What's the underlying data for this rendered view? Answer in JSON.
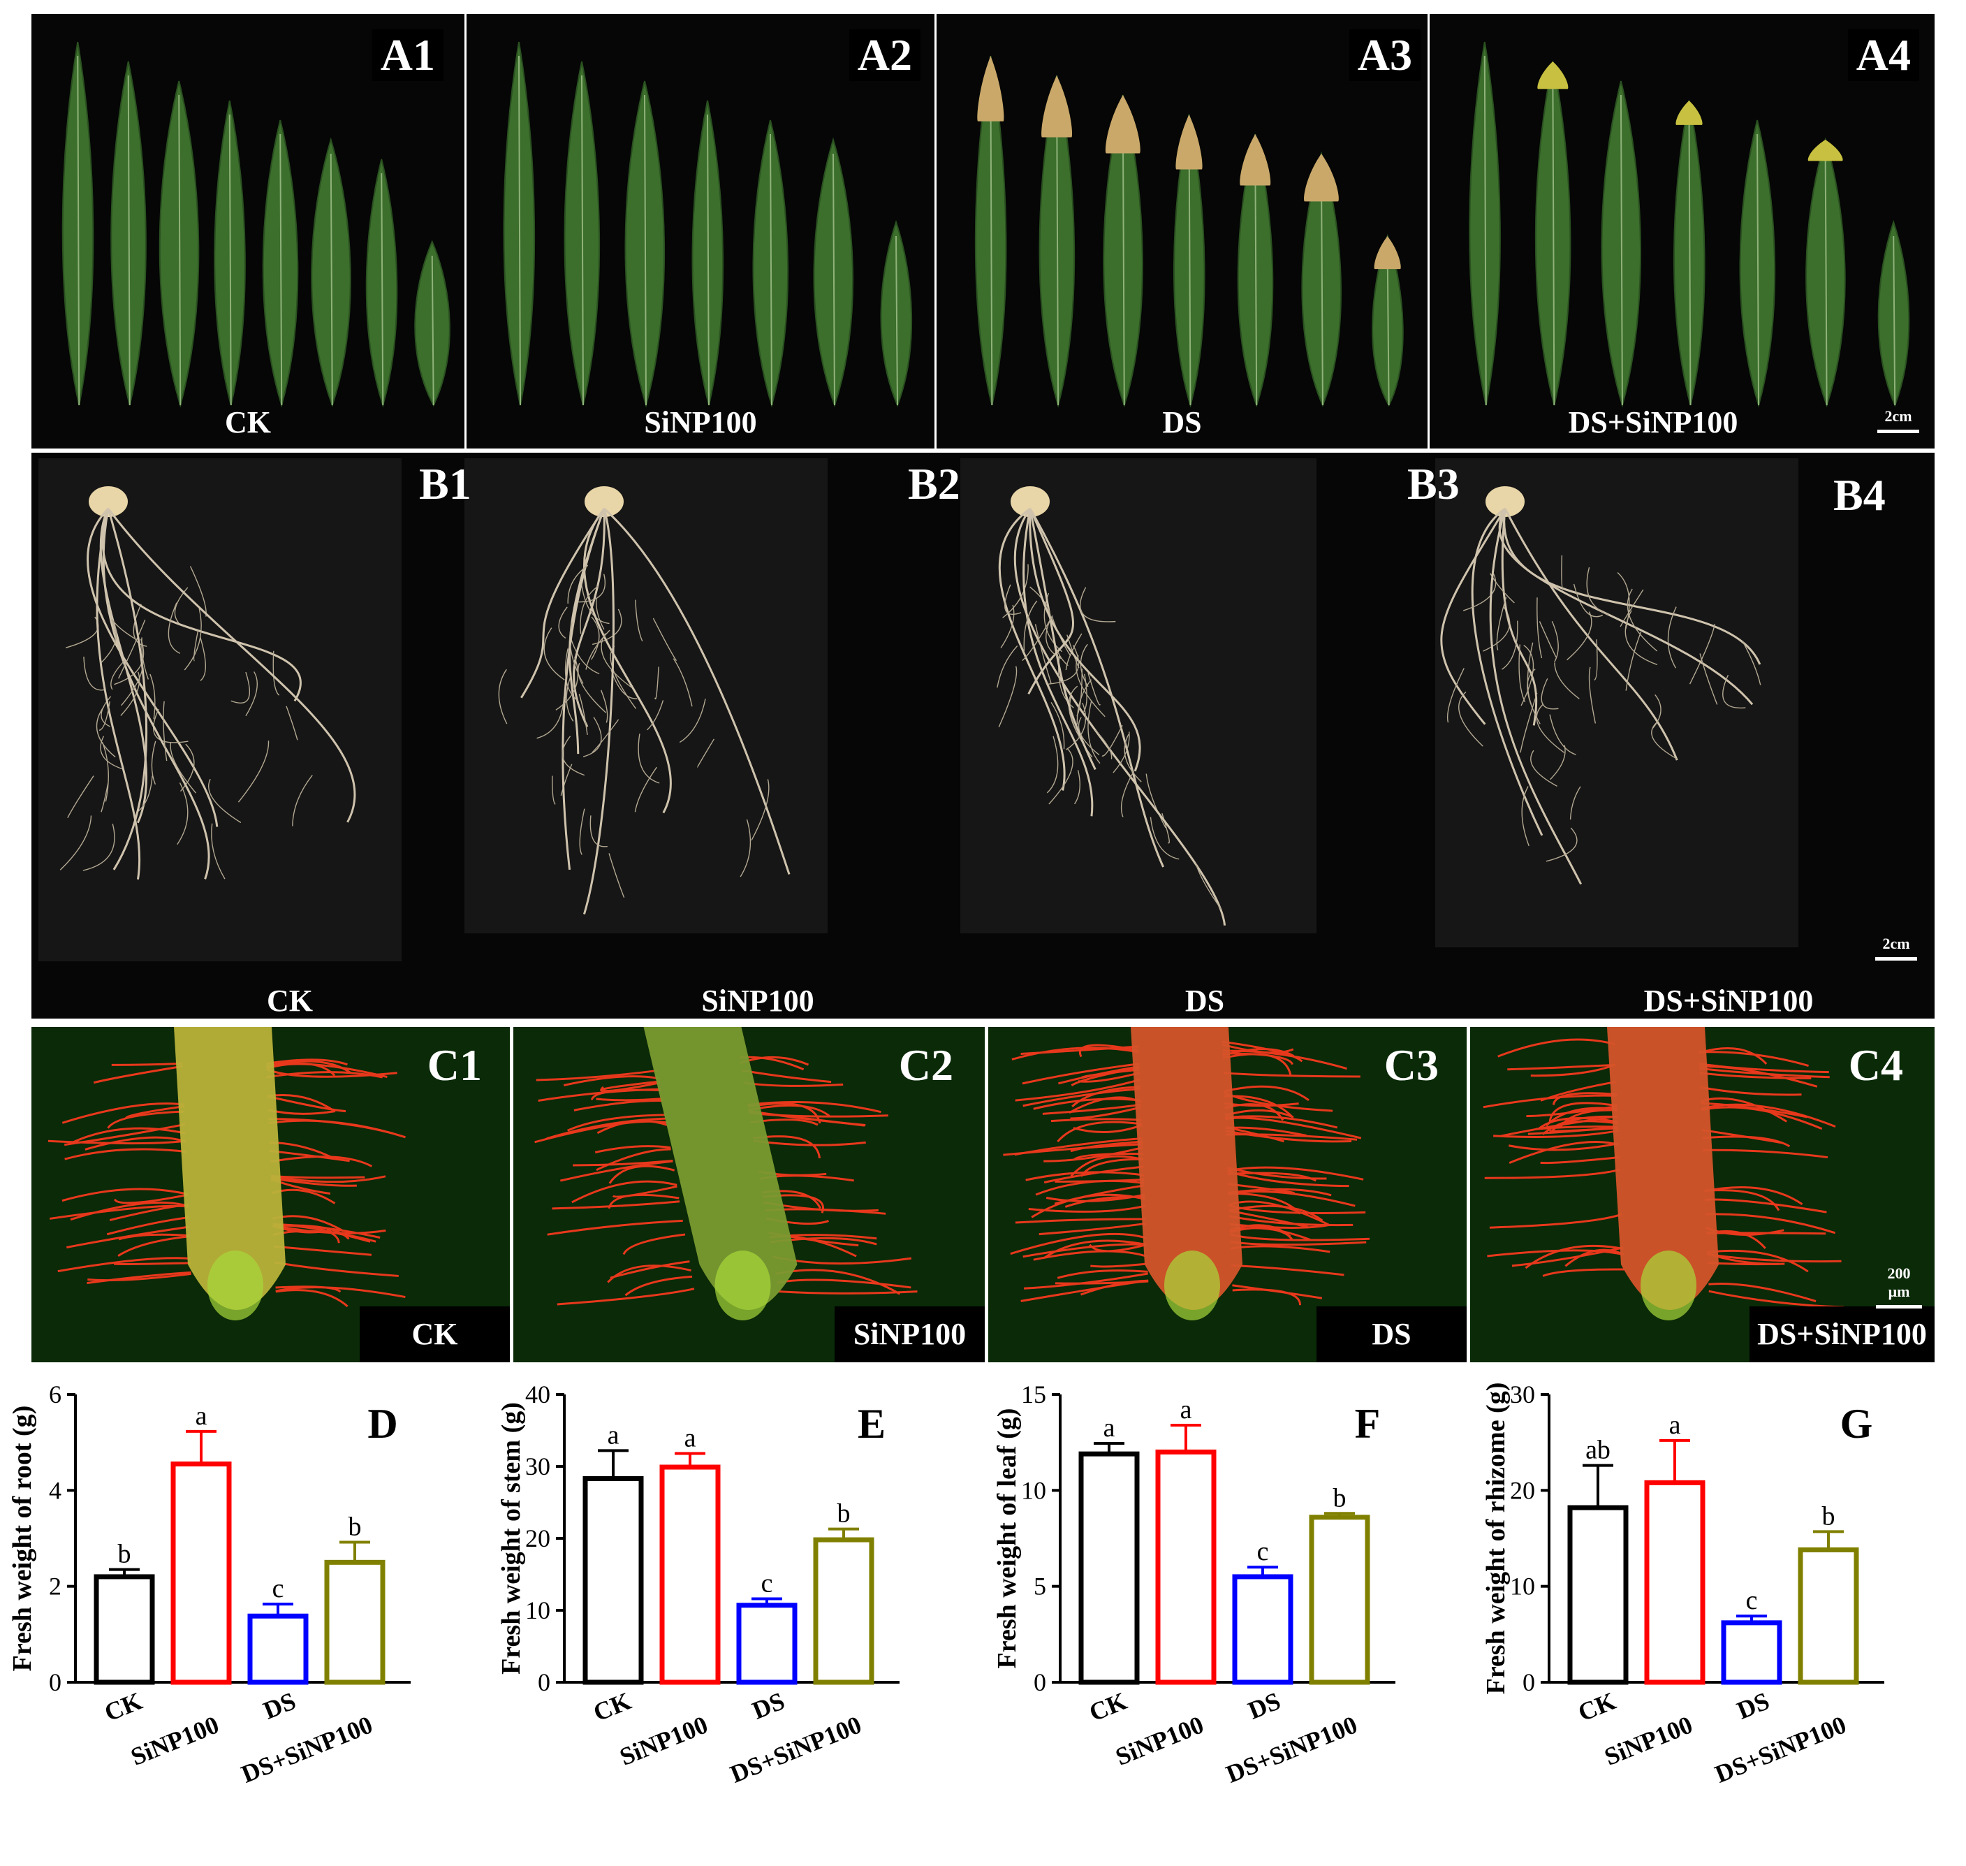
{
  "row_a": {
    "panels": [
      {
        "label": "A1",
        "treatment": "CK",
        "style": "healthy"
      },
      {
        "label": "A2",
        "treatment": "SiNP100",
        "style": "healthy"
      },
      {
        "label": "A3",
        "treatment": "DS",
        "style": "stressed"
      },
      {
        "label": "A4",
        "treatment": "DS+SiNP100",
        "style": "mild"
      }
    ],
    "scale_bar": "2cm"
  },
  "row_b": {
    "panels": [
      {
        "label": "B1",
        "treatment": "CK"
      },
      {
        "label": "B2",
        "treatment": "SiNP100"
      },
      {
        "label": "B3",
        "treatment": "DS"
      },
      {
        "label": "B4",
        "treatment": "DS+SiNP100"
      }
    ],
    "scale_bar": "2cm"
  },
  "row_c": {
    "panels": [
      {
        "label": "C1",
        "treatment": "CK"
      },
      {
        "label": "C2",
        "treatment": "SiNP100"
      },
      {
        "label": "C3",
        "treatment": "DS"
      },
      {
        "label": "C4",
        "treatment": "DS+SiNP100"
      }
    ],
    "scale_bar": "200 μm"
  },
  "chart_data": [
    {
      "type": "bar",
      "panel": "D",
      "ylabel": "Fresh weight of root (g)",
      "categories": [
        "CK",
        "SiNP100",
        "DS",
        "DS+SiNP100"
      ],
      "values": [
        2.2,
        4.55,
        1.38,
        2.5
      ],
      "errors": [
        0.15,
        0.68,
        0.25,
        0.42
      ],
      "letters": [
        "b",
        "a",
        "c",
        "b"
      ],
      "ylim": [
        0,
        6
      ],
      "ticks": [
        0,
        2,
        4,
        6
      ],
      "colors": [
        "#000000",
        "#ff0000",
        "#0000ff",
        "#808000"
      ]
    },
    {
      "type": "bar",
      "panel": "E",
      "ylabel": "Fresh weight of stem (g)",
      "categories": [
        "CK",
        "SiNP100",
        "DS",
        "DS+SiNP100"
      ],
      "values": [
        28.3,
        29.9,
        10.7,
        19.8
      ],
      "errors": [
        3.9,
        1.9,
        0.9,
        1.5
      ],
      "letters": [
        "a",
        "a",
        "c",
        "b"
      ],
      "ylim": [
        0,
        40
      ],
      "ticks": [
        0,
        10,
        20,
        30,
        40
      ],
      "colors": [
        "#000000",
        "#ff0000",
        "#0000ff",
        "#808000"
      ]
    },
    {
      "type": "bar",
      "panel": "F",
      "ylabel": "Fresh weight of leaf (g)",
      "categories": [
        "CK",
        "SiNP100",
        "DS",
        "DS+SiNP100"
      ],
      "values": [
        11.9,
        12.0,
        5.5,
        8.6
      ],
      "errors": [
        0.55,
        1.4,
        0.5,
        0.2
      ],
      "letters": [
        "a",
        "a",
        "c",
        "b"
      ],
      "ylim": [
        0,
        15
      ],
      "ticks": [
        0,
        5,
        10,
        15
      ],
      "colors": [
        "#000000",
        "#ff0000",
        "#0000ff",
        "#808000"
      ]
    },
    {
      "type": "bar",
      "panel": "G",
      "ylabel": "Fresh weight of rhizome (g)",
      "categories": [
        "CK",
        "SiNP100",
        "DS",
        "DS+SiNP100"
      ],
      "values": [
        18.2,
        20.8,
        6.2,
        13.8
      ],
      "errors": [
        4.4,
        4.4,
        0.7,
        1.9
      ],
      "letters": [
        "ab",
        "a",
        "c",
        "b"
      ],
      "ylim": [
        0,
        30
      ],
      "ticks": [
        0,
        10,
        20,
        30
      ],
      "colors": [
        "#000000",
        "#ff0000",
        "#0000ff",
        "#808000"
      ]
    }
  ]
}
